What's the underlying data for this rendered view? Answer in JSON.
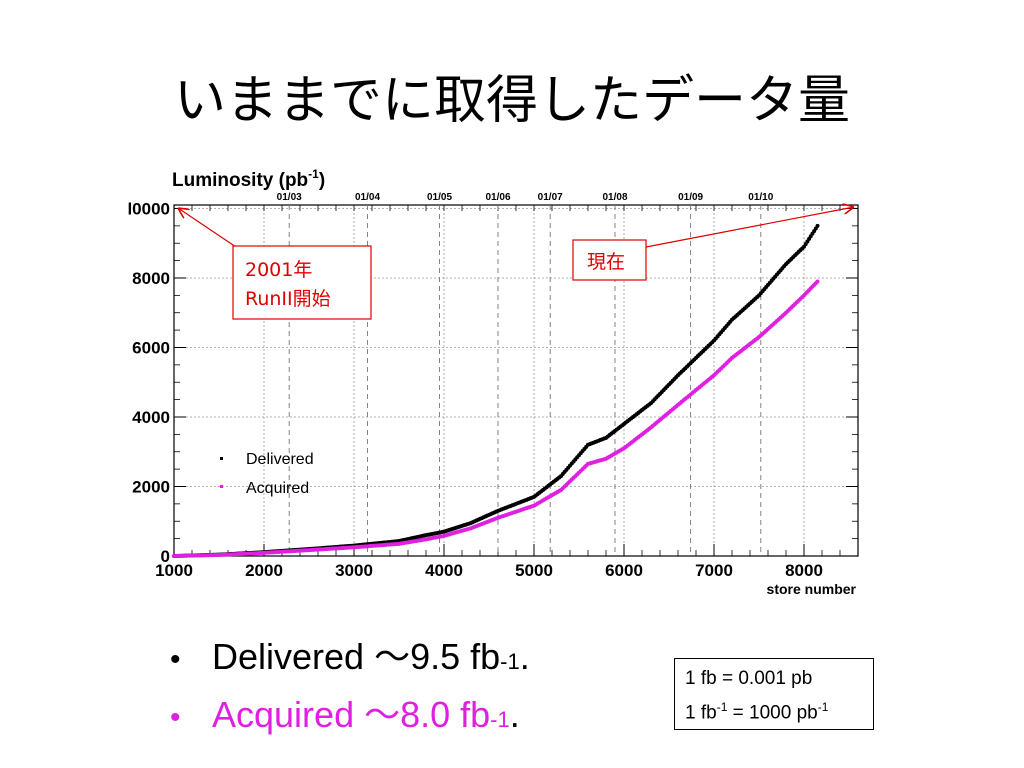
{
  "slide": {
    "title": "いままでに取得したデータ量",
    "bullets": [
      {
        "dot": "•",
        "text": "Delivered ～9.5 fb",
        "sup": "-1",
        "tail": ".",
        "color": "#000000"
      },
      {
        "dot": "•",
        "text": "Acquired ～8.0 fb",
        "sup": "-1",
        "tail": ".",
        "color": "#e020e0"
      }
    ],
    "note_box": {
      "line1": "1 fb = 0.001 pb",
      "line2_a": "1 fb",
      "line2_sup1": "-1",
      "line2_b": " = 1000 pb",
      "line2_sup2": "-1"
    }
  },
  "chart_data": {
    "type": "scatter",
    "title": "Luminosity (pb",
    "title_sup": "-1",
    "title_tail": ")",
    "xlabel": "store number",
    "ylabel": "",
    "xlim": [
      1000,
      8600
    ],
    "ylim": [
      0,
      10100
    ],
    "xticks": [
      1000,
      2000,
      3000,
      4000,
      5000,
      6000,
      7000,
      8000
    ],
    "yticks": [
      0,
      2000,
      4000,
      6000,
      8000,
      10000
    ],
    "ytick_labels": [
      "0",
      "2000",
      "4000",
      "6000",
      "8000",
      "l0000"
    ],
    "date_ticks": [
      {
        "label": "01/03",
        "x": 2280
      },
      {
        "label": "01/04",
        "x": 3150
      },
      {
        "label": "01/05",
        "x": 3950
      },
      {
        "label": "01/06",
        "x": 4600
      },
      {
        "label": "01/07",
        "x": 5180
      },
      {
        "label": "01/08",
        "x": 5900
      },
      {
        "label": "01/09",
        "x": 6740
      },
      {
        "label": "01/10",
        "x": 7520
      }
    ],
    "grid": true,
    "legend_position": "middle-left",
    "series": [
      {
        "name": "Delivered",
        "color": "#000000",
        "points": [
          [
            1000,
            0
          ],
          [
            1500,
            40
          ],
          [
            2000,
            110
          ],
          [
            2500,
            200
          ],
          [
            3000,
            300
          ],
          [
            3500,
            430
          ],
          [
            3800,
            600
          ],
          [
            4000,
            700
          ],
          [
            4300,
            950
          ],
          [
            4600,
            1300
          ],
          [
            5000,
            1700
          ],
          [
            5300,
            2300
          ],
          [
            5600,
            3200
          ],
          [
            5800,
            3400
          ],
          [
            6000,
            3800
          ],
          [
            6300,
            4400
          ],
          [
            6600,
            5200
          ],
          [
            7000,
            6200
          ],
          [
            7200,
            6800
          ],
          [
            7500,
            7500
          ],
          [
            7800,
            8400
          ],
          [
            8000,
            8900
          ],
          [
            8150,
            9500
          ]
        ]
      },
      {
        "name": "Acquired",
        "color": "#e020e0",
        "points": [
          [
            1000,
            0
          ],
          [
            1500,
            30
          ],
          [
            2000,
            90
          ],
          [
            2500,
            170
          ],
          [
            3000,
            250
          ],
          [
            3500,
            350
          ],
          [
            3800,
            480
          ],
          [
            4000,
            580
          ],
          [
            4300,
            800
          ],
          [
            4600,
            1100
          ],
          [
            5000,
            1450
          ],
          [
            5300,
            1900
          ],
          [
            5600,
            2650
          ],
          [
            5800,
            2800
          ],
          [
            6000,
            3100
          ],
          [
            6300,
            3700
          ],
          [
            6600,
            4350
          ],
          [
            7000,
            5200
          ],
          [
            7200,
            5700
          ],
          [
            7500,
            6300
          ],
          [
            7800,
            7000
          ],
          [
            8000,
            7500
          ],
          [
            8150,
            7900
          ]
        ]
      }
    ],
    "annotations": [
      {
        "text_line1": "2001年",
        "text_line2": "RunII開始",
        "color": "#e00000",
        "points_to": [
          1000,
          10100
        ]
      },
      {
        "text_line1": "現在",
        "color": "#e00000",
        "points_to": [
          8600,
          10100
        ]
      }
    ]
  }
}
